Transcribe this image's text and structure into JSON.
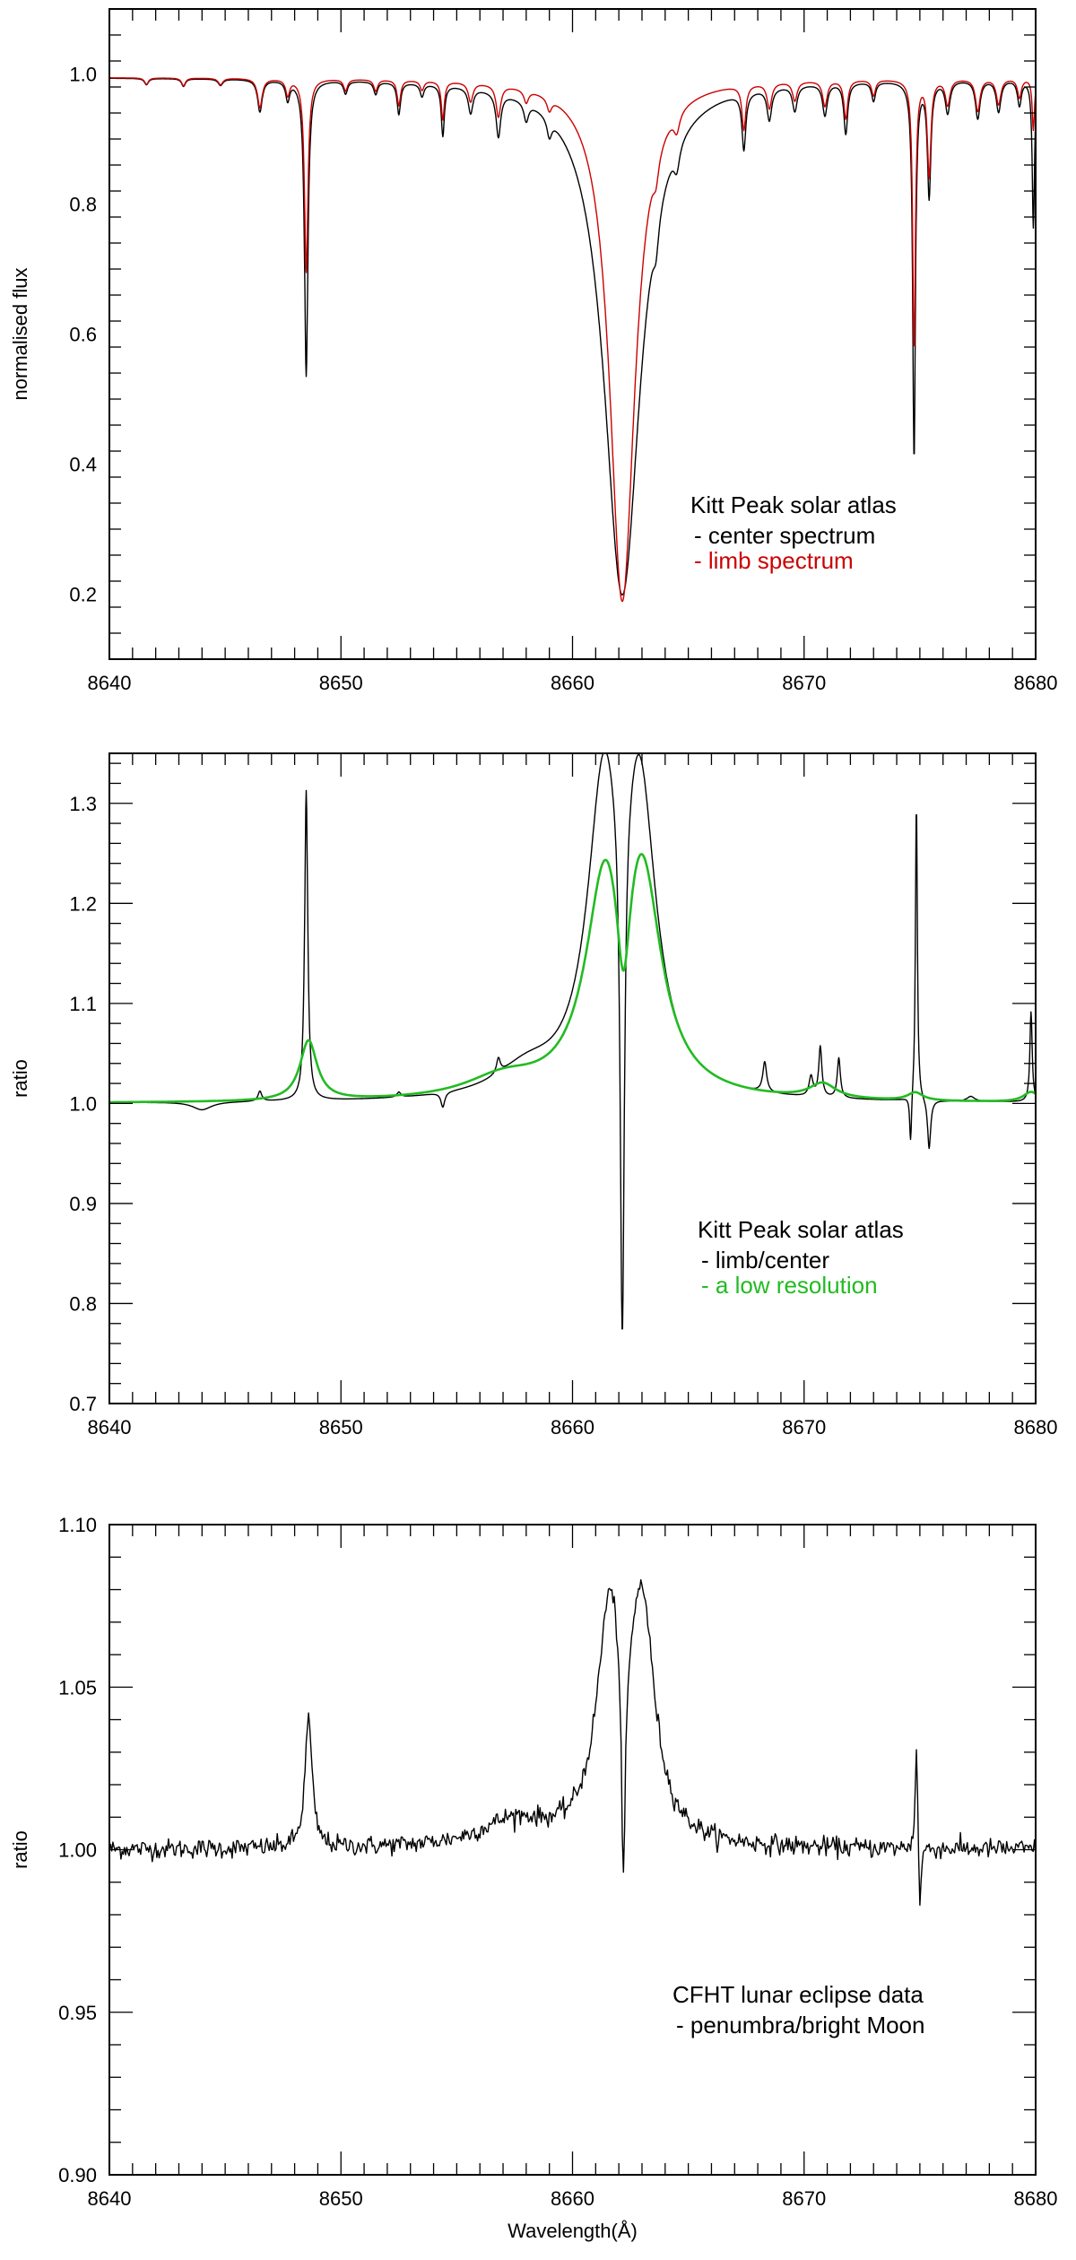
{
  "chart_data": [
    {
      "type": "line",
      "title": "",
      "xlabel": "",
      "ylabel": "normalised flux",
      "xlim": [
        8640,
        8680
      ],
      "ylim": [
        0.1,
        1.1
      ],
      "x_ticks": [
        8640,
        8650,
        8660,
        8670,
        8680
      ],
      "y_ticks": [
        0.2,
        0.4,
        0.6,
        0.8,
        1.0
      ],
      "y_tick_labels": [
        "0.2",
        "0.4",
        "0.6",
        "0.8",
        "1.0"
      ],
      "grid": false,
      "legend_position": "lower-right",
      "legend": {
        "heading": "Kitt Peak solar atlas",
        "entries": [
          {
            "text": "- center spectrum",
            "color": "#000000"
          },
          {
            "text": "- limb spectrum",
            "color": "#cc0000"
          }
        ]
      },
      "series": [
        {
          "color": "#000000",
          "continuum": 0.995,
          "lines": [
            [
              8641.6,
              0.01,
              0.1
            ],
            [
              8643.2,
              0.012,
              0.1
            ],
            [
              8644.8,
              0.01,
              0.12
            ],
            [
              8646.5,
              0.05,
              0.12
            ],
            [
              8647.7,
              0.03,
              0.1
            ],
            [
              8648.5,
              0.46,
              0.09
            ],
            [
              8650.2,
              0.02,
              0.1
            ],
            [
              8651.5,
              0.02,
              0.1
            ],
            [
              8652.5,
              0.05,
              0.09
            ],
            [
              8653.5,
              0.02,
              0.1
            ],
            [
              8654.4,
              0.08,
              0.08
            ],
            [
              8655.6,
              0.04,
              0.12
            ],
            [
              8656.8,
              0.07,
              0.12
            ],
            [
              8658.0,
              0.03,
              0.12
            ],
            [
              8659.0,
              0.03,
              0.12
            ],
            [
              8662.15,
              0.8,
              0.95
            ],
            [
              8663.6,
              0.06,
              0.15
            ],
            [
              8664.5,
              0.04,
              0.15
            ],
            [
              8667.4,
              0.09,
              0.1
            ],
            [
              8668.5,
              0.05,
              0.12
            ],
            [
              8669.6,
              0.04,
              0.12
            ],
            [
              8670.9,
              0.05,
              0.12
            ],
            [
              8671.8,
              0.08,
              0.1
            ],
            [
              8673.0,
              0.03,
              0.1
            ],
            [
              8674.75,
              0.59,
              0.07
            ],
            [
              8675.4,
              0.18,
              0.09
            ],
            [
              8676.2,
              0.05,
              0.12
            ],
            [
              8677.5,
              0.06,
              0.12
            ],
            [
              8678.4,
              0.05,
              0.12
            ],
            [
              8679.3,
              0.04,
              0.1
            ],
            [
              8679.9,
              0.23,
              0.06
            ]
          ]
        },
        {
          "color": "#cc0000",
          "continuum": 0.995,
          "lines": [
            [
              8641.6,
              0.01,
              0.1
            ],
            [
              8643.2,
              0.012,
              0.1
            ],
            [
              8644.8,
              0.01,
              0.12
            ],
            [
              8646.5,
              0.045,
              0.12
            ],
            [
              8647.7,
              0.025,
              0.1
            ],
            [
              8648.5,
              0.3,
              0.09
            ],
            [
              8650.2,
              0.018,
              0.1
            ],
            [
              8651.5,
              0.018,
              0.1
            ],
            [
              8652.5,
              0.04,
              0.09
            ],
            [
              8653.5,
              0.015,
              0.1
            ],
            [
              8654.4,
              0.06,
              0.08
            ],
            [
              8655.6,
              0.03,
              0.12
            ],
            [
              8656.8,
              0.05,
              0.12
            ],
            [
              8658.0,
              0.02,
              0.12
            ],
            [
              8659.0,
              0.02,
              0.12
            ],
            [
              8662.15,
              0.81,
              0.66
            ],
            [
              8663.6,
              0.04,
              0.15
            ],
            [
              8664.5,
              0.03,
              0.15
            ],
            [
              8667.4,
              0.07,
              0.1
            ],
            [
              8668.5,
              0.04,
              0.12
            ],
            [
              8669.6,
              0.03,
              0.12
            ],
            [
              8670.9,
              0.04,
              0.12
            ],
            [
              8671.8,
              0.06,
              0.1
            ],
            [
              8673.0,
              0.025,
              0.1
            ],
            [
              8674.75,
              0.42,
              0.07
            ],
            [
              8675.4,
              0.15,
              0.09
            ],
            [
              8676.2,
              0.04,
              0.12
            ],
            [
              8677.5,
              0.05,
              0.12
            ],
            [
              8678.4,
              0.04,
              0.12
            ],
            [
              8679.3,
              0.03,
              0.1
            ],
            [
              8679.9,
              0.08,
              0.06
            ]
          ]
        }
      ]
    },
    {
      "type": "line",
      "title": "",
      "xlabel": "",
      "ylabel": "ratio",
      "xlim": [
        8640,
        8680
      ],
      "ylim": [
        0.7,
        1.35
      ],
      "x_ticks": [
        8640,
        8650,
        8660,
        8670,
        8680
      ],
      "y_ticks": [
        0.7,
        0.8,
        0.9,
        1.0,
        1.1,
        1.2,
        1.3
      ],
      "y_tick_labels": [
        "0.7",
        "0.8",
        "0.9",
        "1.0",
        "1.1",
        "1.2",
        "1.3"
      ],
      "grid": false,
      "legend_position": "lower-right",
      "legend": {
        "heading": "Kitt Peak solar atlas",
        "entries": [
          {
            "text": "- limb/center",
            "color": "#000000"
          },
          {
            "text": "- a low resolution",
            "color": "#22bb22"
          }
        ]
      },
      "series": [
        {
          "color": "#000000",
          "baseline": 1.0,
          "features": [
            [
              8644.0,
              -0.008,
              0.5
            ],
            [
              8646.5,
              0.01,
              0.1
            ],
            [
              8648.5,
              0.31,
              0.08
            ],
            [
              8652.5,
              0.005,
              0.1
            ],
            [
              8654.4,
              -0.015,
              0.1
            ],
            [
              8656.8,
              0.015,
              0.1
            ],
            [
              8658.0,
              0.025,
              1.6
            ],
            [
              8661.35,
              0.29,
              0.85
            ],
            [
              8662.9,
              0.29,
              0.85
            ],
            [
              8662.15,
              -0.55,
              0.11
            ],
            [
              8668.3,
              0.03,
              0.1
            ],
            [
              8670.3,
              0.02,
              0.1
            ],
            [
              8670.7,
              0.05,
              0.08
            ],
            [
              8671.5,
              0.04,
              0.08
            ],
            [
              8674.6,
              -0.05,
              0.05
            ],
            [
              8674.85,
              0.3,
              0.05
            ],
            [
              8675.4,
              -0.05,
              0.08
            ],
            [
              8677.2,
              0.005,
              0.2
            ],
            [
              8679.8,
              0.09,
              0.06
            ]
          ]
        },
        {
          "color": "#22bb22",
          "baseline": 1.0,
          "features": [
            [
              8648.6,
              0.06,
              0.45
            ],
            [
              8661.4,
              0.2,
              1.0
            ],
            [
              8663.0,
              0.21,
              1.0
            ],
            [
              8662.2,
              -0.12,
              0.35
            ],
            [
              8657.0,
              0.02,
              2.0
            ],
            [
              8670.8,
              0.015,
              0.7
            ],
            [
              8674.8,
              0.008,
              0.4
            ],
            [
              8679.8,
              0.01,
              0.4
            ]
          ]
        }
      ]
    },
    {
      "type": "line",
      "title": "",
      "xlabel": "Wavelength(Å)",
      "ylabel": "ratio",
      "xlim": [
        8640,
        8680
      ],
      "ylim": [
        0.9,
        1.1
      ],
      "x_ticks": [
        8640,
        8650,
        8660,
        8670,
        8680
      ],
      "y_ticks": [
        0.9,
        0.95,
        1.0,
        1.05,
        1.1
      ],
      "y_tick_labels": [
        "0.90",
        "0.95",
        "1.00",
        "1.05",
        "1.10"
      ],
      "grid": false,
      "legend_position": "lower-right",
      "legend": {
        "heading": "CFHT lunar eclipse data",
        "entries": [
          {
            "text": "- penumbra/bright Moon",
            "color": "#000000"
          }
        ]
      },
      "series": [
        {
          "color": "#000000",
          "baseline": 1.0,
          "noise": 0.0015,
          "features": [
            [
              8648.6,
              0.04,
              0.18
            ],
            [
              8661.6,
              0.068,
              0.65
            ],
            [
              8663.0,
              0.07,
              0.65
            ],
            [
              8662.2,
              -0.075,
              0.1
            ],
            [
              8657.5,
              0.008,
              1.8
            ],
            [
              8674.85,
              0.035,
              0.06
            ],
            [
              8675.0,
              -0.022,
              0.06
            ]
          ]
        }
      ]
    }
  ]
}
